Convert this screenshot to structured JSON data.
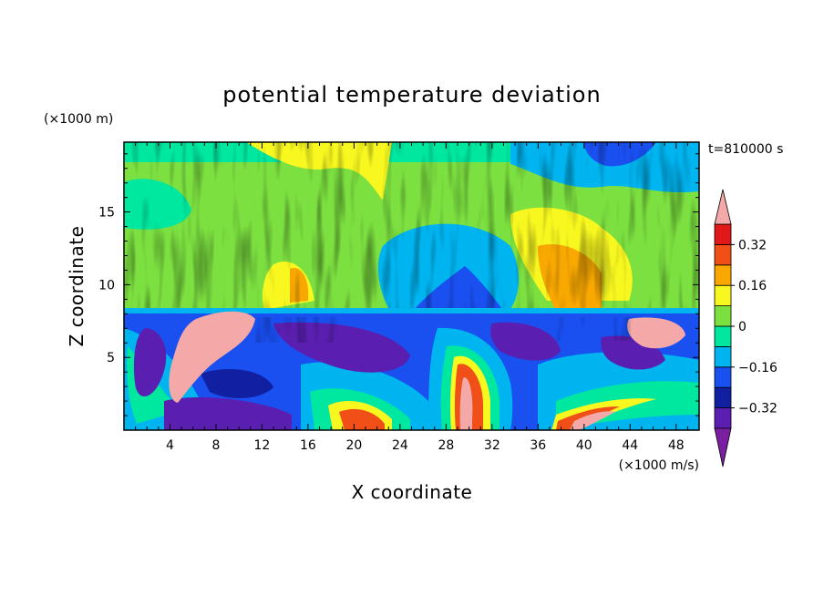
{
  "chart_data": {
    "type": "heatmap",
    "title": "potential temperature deviation",
    "xlabel": "X coordinate",
    "ylabel": "Z coordinate",
    "x_unit": "(×1000 m/s)",
    "y_unit": "(×1000 m)",
    "time_label": "t=810000 s",
    "xlim": [
      0,
      50
    ],
    "ylim": [
      0,
      19.8
    ],
    "x_ticks": [
      4,
      8,
      12,
      16,
      20,
      24,
      28,
      32,
      36,
      40,
      44,
      48
    ],
    "y_ticks": [
      5,
      10,
      15
    ],
    "colorbar": {
      "levels": [
        -0.4,
        -0.32,
        -0.24,
        -0.16,
        -0.08,
        0,
        0.08,
        0.16,
        0.24,
        0.32,
        0.4
      ],
      "tick_labels": [
        "0.32",
        "0.16",
        "0",
        "−0.16",
        "−0.32"
      ],
      "tick_values": [
        0.32,
        0.16,
        0,
        -0.16,
        -0.32
      ],
      "colors": [
        "#7a1fa2",
        "#5a1fb0",
        "#1020a0",
        "#1a4ff0",
        "#00b4f0",
        "#00e8a0",
        "#7ce040",
        "#f8f820",
        "#f8a800",
        "#f05018",
        "#e01818",
        "#f4a8a8"
      ],
      "extend": "both"
    }
  }
}
